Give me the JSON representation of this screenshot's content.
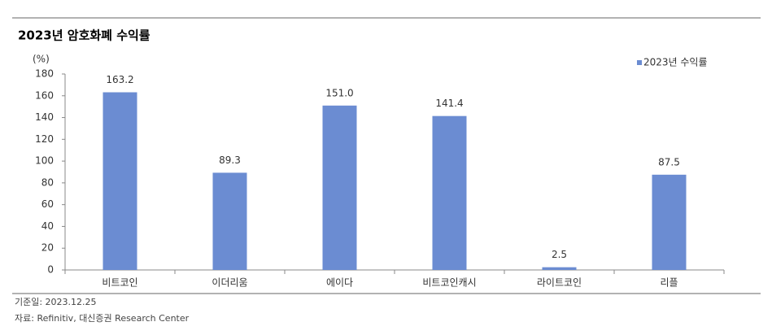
{
  "chart_data": {
    "type": "bar",
    "title": "2023년 암호화폐 수익률",
    "y_unit": "(%)",
    "categories": [
      "비트코인",
      "이더리움",
      "에이다",
      "비트코인캐시",
      "라이트코인",
      "리플"
    ],
    "series": [
      {
        "name": "2023년 수익률",
        "color": "#6b8cd2",
        "values": [
          163.2,
          89.3,
          151.0,
          141.4,
          2.5,
          87.5
        ],
        "value_labels": [
          "163.2",
          "89.3",
          "151.0",
          "141.4",
          "2.5",
          "87.5"
        ]
      }
    ],
    "ylim": [
      0,
      180
    ],
    "yticks": [
      0,
      20,
      40,
      60,
      80,
      100,
      120,
      140,
      160,
      180
    ],
    "grid": false,
    "legend": "top-right"
  },
  "notes": [
    "기준일: 2023.12.25",
    "자료: Refinitiv, 대신증권 Research Center"
  ]
}
